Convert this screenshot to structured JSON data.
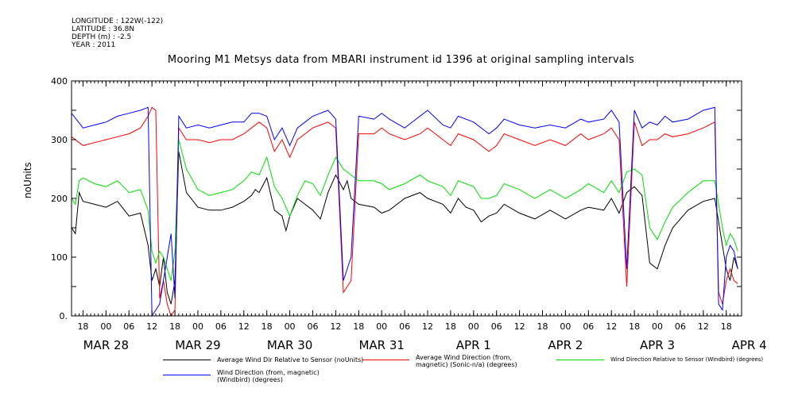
{
  "metadata": {
    "longitude": "LONGITUDE : 122W(-122)",
    "latitude": "LATITUDE : 36.8N",
    "depth": "DEPTH (m) : -2.5",
    "year": "YEAR : 2011"
  },
  "chart_data": {
    "type": "line",
    "title": "Mooring M1 Metsys data from MBARI instrument id 1396 at original sampling intervals",
    "ylabel": "noUnits",
    "xlabel": "",
    "ylim": [
      0,
      400
    ],
    "yticks": [
      0,
      100,
      200,
      300,
      400
    ],
    "ytick_labels": [
      "0.",
      "100",
      "200",
      "300",
      "400"
    ],
    "x_unit": "hours since Mar 28 00:00",
    "xlim": [
      -9,
      166
    ],
    "hour_ticks": [
      {
        "x": -6,
        "label": "18"
      },
      {
        "x": 0,
        "label": "00"
      },
      {
        "x": 6,
        "label": "06"
      },
      {
        "x": 12,
        "label": "12"
      },
      {
        "x": 18,
        "label": "18"
      },
      {
        "x": 24,
        "label": "00"
      },
      {
        "x": 30,
        "label": "06"
      },
      {
        "x": 36,
        "label": "12"
      },
      {
        "x": 42,
        "label": "18"
      },
      {
        "x": 48,
        "label": "00"
      },
      {
        "x": 54,
        "label": "06"
      },
      {
        "x": 60,
        "label": "12"
      },
      {
        "x": 66,
        "label": "18"
      },
      {
        "x": 72,
        "label": "00"
      },
      {
        "x": 78,
        "label": "06"
      },
      {
        "x": 84,
        "label": "12"
      },
      {
        "x": 90,
        "label": "18"
      },
      {
        "x": 96,
        "label": "00"
      },
      {
        "x": 102,
        "label": "06"
      },
      {
        "x": 108,
        "label": "12"
      },
      {
        "x": 114,
        "label": "18"
      },
      {
        "x": 120,
        "label": "00"
      },
      {
        "x": 126,
        "label": "06"
      },
      {
        "x": 132,
        "label": "12"
      },
      {
        "x": 138,
        "label": "18"
      },
      {
        "x": 144,
        "label": "00"
      },
      {
        "x": 150,
        "label": "06"
      },
      {
        "x": 156,
        "label": "12"
      },
      {
        "x": 162,
        "label": "18"
      }
    ],
    "day_labels": [
      {
        "x": 0,
        "label": "MAR 28"
      },
      {
        "x": 24,
        "label": "MAR 29"
      },
      {
        "x": 48,
        "label": "MAR 30"
      },
      {
        "x": 72,
        "label": "MAR 31"
      },
      {
        "x": 96,
        "label": "APR  1"
      },
      {
        "x": 120,
        "label": "APR  2"
      },
      {
        "x": 144,
        "label": "APR  3"
      },
      {
        "x": 168,
        "label": "APR  4"
      }
    ],
    "series": [
      {
        "name": "Average Wind Dir Relative to Sensor (noUnits)",
        "color": "#000000",
        "x": [
          -9,
          -8,
          -7,
          -6,
          -3,
          0,
          3,
          6,
          9,
          11,
          12,
          13,
          14,
          15,
          16,
          17,
          18,
          19,
          21,
          24,
          27,
          30,
          33,
          36,
          38,
          39,
          40,
          42,
          44,
          46,
          47,
          48,
          50,
          52,
          54,
          56,
          58,
          60,
          62,
          63,
          64,
          66,
          70,
          72,
          74,
          78,
          82,
          84,
          88,
          90,
          92,
          94,
          96,
          98,
          100,
          102,
          104,
          108,
          112,
          116,
          120,
          124,
          126,
          130,
          132,
          134,
          136,
          138,
          140,
          142,
          144,
          146,
          148,
          152,
          156,
          159,
          160,
          161,
          162,
          163,
          164,
          165
        ],
        "y": [
          150,
          140,
          210,
          195,
          190,
          185,
          195,
          170,
          175,
          120,
          60,
          80,
          50,
          100,
          40,
          20,
          60,
          280,
          210,
          185,
          180,
          180,
          185,
          195,
          205,
          215,
          210,
          235,
          180,
          170,
          145,
          170,
          200,
          190,
          180,
          165,
          210,
          240,
          215,
          230,
          200,
          190,
          185,
          175,
          180,
          200,
          210,
          200,
          190,
          175,
          200,
          185,
          180,
          160,
          170,
          175,
          190,
          175,
          165,
          180,
          165,
          180,
          185,
          180,
          200,
          175,
          210,
          220,
          205,
          90,
          80,
          120,
          150,
          180,
          195,
          200,
          160,
          120,
          80,
          60,
          100,
          80
        ]
      },
      {
        "name": "Average Wind Direction (from, magnetic) (Sonic-n/a) (degrees)",
        "color": "#ff0000",
        "x": [
          -9,
          -6,
          -3,
          0,
          3,
          6,
          9,
          11,
          12,
          13,
          14,
          15,
          16,
          17,
          18,
          19,
          21,
          24,
          27,
          30,
          33,
          36,
          38,
          40,
          42,
          44,
          46,
          48,
          50,
          52,
          54,
          56,
          58,
          60,
          62,
          64,
          66,
          70,
          72,
          74,
          78,
          82,
          84,
          88,
          90,
          92,
          96,
          100,
          102,
          104,
          108,
          112,
          116,
          120,
          124,
          126,
          130,
          132,
          134,
          136,
          138,
          140,
          142,
          144,
          146,
          148,
          152,
          156,
          159,
          160,
          161,
          162,
          163,
          164,
          165
        ],
        "y": [
          305,
          290,
          295,
          300,
          305,
          310,
          320,
          340,
          355,
          350,
          30,
          60,
          20,
          0,
          10,
          320,
          300,
          300,
          295,
          300,
          300,
          310,
          320,
          330,
          320,
          280,
          300,
          270,
          300,
          310,
          320,
          325,
          330,
          320,
          40,
          60,
          310,
          310,
          320,
          310,
          300,
          310,
          320,
          300,
          290,
          310,
          300,
          280,
          290,
          310,
          300,
          290,
          300,
          290,
          310,
          300,
          310,
          320,
          300,
          50,
          330,
          290,
          300,
          300,
          310,
          305,
          310,
          320,
          330,
          40,
          20,
          60,
          80,
          60,
          55
        ]
      },
      {
        "name": "Wind Direction Relative to Sensor (Windbird) (degrees)",
        "color": "#00e000",
        "x": [
          -9,
          -8,
          -7,
          -6,
          -3,
          0,
          3,
          6,
          9,
          11,
          12,
          13,
          14,
          15,
          16,
          17,
          18,
          19,
          21,
          24,
          27,
          30,
          33,
          36,
          38,
          40,
          42,
          44,
          46,
          48,
          50,
          52,
          54,
          56,
          58,
          60,
          62,
          64,
          66,
          70,
          72,
          74,
          78,
          82,
          84,
          88,
          90,
          92,
          96,
          98,
          100,
          102,
          104,
          108,
          112,
          116,
          120,
          124,
          126,
          130,
          132,
          134,
          136,
          138,
          140,
          142,
          144,
          146,
          148,
          152,
          156,
          159,
          160,
          161,
          162,
          163,
          164,
          165
        ],
        "y": [
          200,
          190,
          230,
          235,
          225,
          220,
          230,
          210,
          215,
          180,
          110,
          90,
          110,
          100,
          80,
          60,
          110,
          300,
          250,
          215,
          205,
          210,
          215,
          230,
          245,
          240,
          270,
          220,
          200,
          170,
          205,
          230,
          225,
          205,
          240,
          270,
          250,
          240,
          230,
          230,
          225,
          215,
          225,
          240,
          230,
          220,
          205,
          230,
          220,
          200,
          200,
          205,
          225,
          215,
          200,
          215,
          200,
          215,
          225,
          210,
          230,
          210,
          245,
          250,
          240,
          150,
          130,
          160,
          185,
          210,
          230,
          230,
          190,
          150,
          120,
          140,
          130,
          110
        ]
      },
      {
        "name": "Wind Direction (from, magnetic) (Windbird) (degrees)",
        "color": "#0000ff",
        "x": [
          -9,
          -6,
          -3,
          0,
          3,
          6,
          9,
          11,
          12,
          13,
          14,
          15,
          16,
          17,
          18,
          19,
          21,
          24,
          27,
          30,
          33,
          36,
          38,
          40,
          42,
          44,
          46,
          48,
          50,
          52,
          54,
          56,
          58,
          60,
          62,
          64,
          66,
          70,
          72,
          74,
          78,
          82,
          84,
          88,
          90,
          92,
          96,
          100,
          102,
          104,
          108,
          112,
          116,
          120,
          124,
          126,
          130,
          132,
          134,
          136,
          138,
          140,
          142,
          144,
          146,
          148,
          152,
          156,
          159,
          160,
          161,
          162,
          163,
          164,
          165
        ],
        "y": [
          345,
          320,
          325,
          330,
          340,
          345,
          350,
          355,
          0,
          10,
          20,
          60,
          100,
          140,
          30,
          340,
          320,
          325,
          320,
          325,
          330,
          330,
          345,
          345,
          340,
          300,
          320,
          290,
          320,
          330,
          340,
          345,
          350,
          335,
          60,
          100,
          340,
          335,
          345,
          335,
          320,
          340,
          350,
          325,
          320,
          340,
          330,
          310,
          320,
          335,
          325,
          320,
          325,
          320,
          335,
          330,
          335,
          350,
          330,
          80,
          350,
          320,
          330,
          325,
          340,
          330,
          335,
          350,
          355,
          20,
          10,
          100,
          120,
          110,
          80
        ]
      }
    ]
  }
}
